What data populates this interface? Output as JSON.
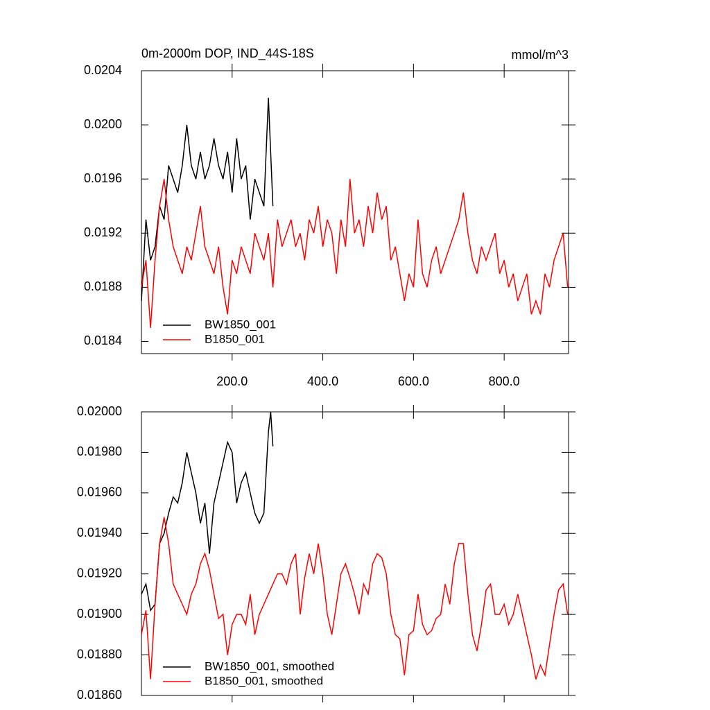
{
  "chart_data": [
    {
      "type": "line",
      "title": "0m-2000m DOP, IND_44S-18S",
      "units": "mmol/m^3",
      "xlim": [
        0,
        942
      ],
      "xticks": [
        {
          "value": 200,
          "label": "200.0"
        },
        {
          "value": 400,
          "label": "400.0"
        },
        {
          "value": 600,
          "label": "600.0"
        },
        {
          "value": 800,
          "label": "800.0"
        }
      ],
      "ylim": [
        0.01831,
        0.0204
      ],
      "yticks": [
        0.0184,
        0.0188,
        0.0192,
        0.0196,
        {
          "value": 0.02,
          "label": "0.0200"
        },
        0.0204
      ],
      "legend": "lower left",
      "series": [
        {
          "name": "BW1850_001",
          "color": "#000000",
          "x": [
            0,
            10,
            20,
            30,
            40,
            50,
            60,
            70,
            80,
            90,
            100,
            110,
            120,
            130,
            140,
            150,
            160,
            170,
            180,
            190,
            200,
            210,
            220,
            230,
            240,
            250,
            260,
            270,
            280,
            290
          ],
          "values": [
            0.0187,
            0.0193,
            0.019,
            0.0191,
            0.0194,
            0.0193,
            0.0197,
            0.0196,
            0.0195,
            0.0197,
            0.02,
            0.0197,
            0.0196,
            0.0198,
            0.0196,
            0.0197,
            0.0199,
            0.0197,
            0.0196,
            0.0198,
            0.0195,
            0.0199,
            0.0196,
            0.0197,
            0.0193,
            0.0196,
            0.0195,
            0.0194,
            0.0202,
            0.0194
          ]
        },
        {
          "name": "B1850_001",
          "color": "#ff0000",
          "x": [
            0,
            10,
            20,
            30,
            40,
            50,
            60,
            70,
            80,
            90,
            100,
            110,
            120,
            130,
            140,
            150,
            160,
            170,
            180,
            190,
            200,
            210,
            220,
            230,
            240,
            250,
            260,
            270,
            280,
            290,
            300,
            310,
            320,
            330,
            340,
            350,
            360,
            370,
            380,
            390,
            400,
            410,
            420,
            430,
            440,
            450,
            460,
            470,
            480,
            490,
            500,
            510,
            520,
            530,
            540,
            550,
            560,
            570,
            580,
            590,
            600,
            610,
            620,
            630,
            640,
            650,
            660,
            670,
            680,
            690,
            700,
            710,
            720,
            730,
            740,
            750,
            760,
            770,
            780,
            790,
            800,
            810,
            820,
            830,
            840,
            850,
            860,
            870,
            880,
            890,
            900,
            910,
            920,
            930,
            940
          ],
          "values": [
            0.0188,
            0.019,
            0.0185,
            0.019,
            0.0194,
            0.0196,
            0.0193,
            0.0191,
            0.019,
            0.0189,
            0.0191,
            0.019,
            0.0192,
            0.0194,
            0.0191,
            0.019,
            0.0189,
            0.0191,
            0.0188,
            0.0186,
            0.019,
            0.0189,
            0.0191,
            0.019,
            0.0189,
            0.0192,
            0.0191,
            0.019,
            0.0192,
            0.0188,
            0.0193,
            0.0191,
            0.0192,
            0.0193,
            0.0191,
            0.0192,
            0.019,
            0.0193,
            0.0192,
            0.0194,
            0.0191,
            0.0193,
            0.0192,
            0.0189,
            0.0193,
            0.0191,
            0.0196,
            0.0192,
            0.0193,
            0.0191,
            0.0194,
            0.0192,
            0.0195,
            0.0193,
            0.0194,
            0.019,
            0.0191,
            0.0189,
            0.0187,
            0.0189,
            0.0188,
            0.0193,
            0.0189,
            0.0188,
            0.019,
            0.0191,
            0.0189,
            0.019,
            0.0191,
            0.0192,
            0.0193,
            0.0195,
            0.0192,
            0.019,
            0.0189,
            0.0191,
            0.019,
            0.0191,
            0.0192,
            0.0189,
            0.019,
            0.0188,
            0.0189,
            0.0187,
            0.0188,
            0.0189,
            0.0186,
            0.0187,
            0.0186,
            0.0189,
            0.0188,
            0.019,
            0.0191,
            0.0192,
            0.0188
          ]
        }
      ]
    },
    {
      "type": "line",
      "xlim": [
        0,
        942
      ],
      "xticks": [
        200,
        400,
        600,
        800
      ],
      "xtick_labels": false,
      "ylim": [
        0.0186,
        0.02
      ],
      "yticks": [
        {
          "value": 0.0186,
          "label": "0.01860"
        },
        {
          "value": 0.0188,
          "label": "0.01880"
        },
        {
          "value": 0.019,
          "label": "0.01900"
        },
        {
          "value": 0.0192,
          "label": "0.01920"
        },
        {
          "value": 0.0194,
          "label": "0.01940"
        },
        {
          "value": 0.0196,
          "label": "0.01960"
        },
        {
          "value": 0.0198,
          "label": "0.01980"
        },
        {
          "value": 0.02,
          "label": "0.02000"
        }
      ],
      "legend": "lower left",
      "series": [
        {
          "name": "BW1850_001, smoothed",
          "color": "#000000",
          "x": [
            0,
            10,
            20,
            30,
            40,
            50,
            60,
            70,
            80,
            90,
            100,
            110,
            120,
            130,
            140,
            150,
            160,
            170,
            180,
            190,
            200,
            210,
            220,
            230,
            240,
            250,
            260,
            270,
            280,
            285,
            290
          ],
          "values": [
            0.0191,
            0.01915,
            0.01902,
            0.01905,
            0.01935,
            0.0194,
            0.0195,
            0.01958,
            0.01955,
            0.01965,
            0.0198,
            0.0197,
            0.0196,
            0.01945,
            0.01955,
            0.0193,
            0.01955,
            0.01965,
            0.01975,
            0.01985,
            0.0198,
            0.01955,
            0.01965,
            0.0197,
            0.0196,
            0.0195,
            0.01945,
            0.0195,
            0.0199,
            0.02,
            0.01983
          ]
        },
        {
          "name": "B1850_001, smoothed",
          "color": "#ff0000",
          "x": [
            0,
            10,
            20,
            30,
            40,
            50,
            60,
            70,
            80,
            90,
            100,
            110,
            120,
            130,
            140,
            150,
            160,
            170,
            180,
            190,
            200,
            210,
            220,
            230,
            240,
            250,
            260,
            270,
            280,
            290,
            300,
            310,
            320,
            330,
            340,
            350,
            360,
            370,
            380,
            390,
            400,
            410,
            420,
            430,
            440,
            450,
            460,
            470,
            480,
            490,
            500,
            510,
            520,
            530,
            540,
            550,
            560,
            570,
            580,
            590,
            600,
            610,
            620,
            630,
            640,
            650,
            660,
            670,
            680,
            690,
            700,
            710,
            720,
            730,
            740,
            750,
            760,
            770,
            780,
            790,
            800,
            810,
            820,
            830,
            840,
            850,
            860,
            870,
            880,
            890,
            900,
            910,
            920,
            930,
            940
          ],
          "values": [
            0.0189,
            0.01902,
            0.01868,
            0.01905,
            0.01935,
            0.01948,
            0.01935,
            0.01915,
            0.0191,
            0.01905,
            0.019,
            0.0191,
            0.01915,
            0.01925,
            0.0193,
            0.01922,
            0.0191,
            0.01898,
            0.019,
            0.0188,
            0.01895,
            0.019,
            0.019,
            0.01895,
            0.0191,
            0.0189,
            0.019,
            0.01905,
            0.0191,
            0.01915,
            0.0192,
            0.0192,
            0.01915,
            0.01925,
            0.0193,
            0.019,
            0.01918,
            0.0193,
            0.0192,
            0.01935,
            0.0192,
            0.019,
            0.0189,
            0.01905,
            0.0192,
            0.01925,
            0.01918,
            0.0191,
            0.019,
            0.01915,
            0.0191,
            0.01925,
            0.0193,
            0.01928,
            0.0192,
            0.019,
            0.0189,
            0.01888,
            0.0187,
            0.0189,
            0.01892,
            0.0191,
            0.01895,
            0.0189,
            0.01892,
            0.01898,
            0.019,
            0.01915,
            0.01905,
            0.01925,
            0.01935,
            0.01935,
            0.0191,
            0.0189,
            0.01882,
            0.01895,
            0.01912,
            0.01915,
            0.019,
            0.019,
            0.01905,
            0.01895,
            0.019,
            0.0191,
            0.019,
            0.0189,
            0.0188,
            0.01868,
            0.01875,
            0.0187,
            0.01885,
            0.019,
            0.01912,
            0.01915,
            0.019
          ]
        }
      ]
    }
  ]
}
